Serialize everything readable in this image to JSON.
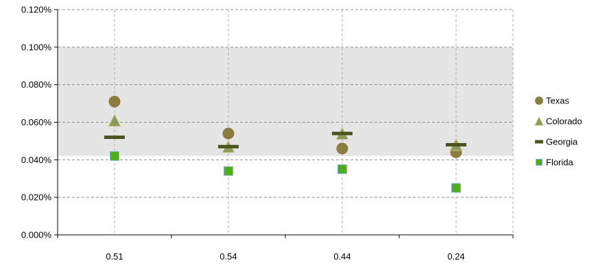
{
  "chart_data": {
    "type": "scatter",
    "categories": [
      "0.51",
      "0.54",
      "0.44",
      "0.24"
    ],
    "ylim": [
      0,
      0.12
    ],
    "yticks": [
      "0.000%",
      "0.020%",
      "0.040%",
      "0.060%",
      "0.080%",
      "0.100%",
      "0.120%"
    ],
    "shaded_band": [
      0.042,
      0.1
    ],
    "grid": true,
    "legend_position": "right",
    "series": [
      {
        "name": "Texas",
        "marker": "circle",
        "color": "#8b7d3f",
        "values": [
          0.071,
          0.054,
          0.046,
          0.044
        ]
      },
      {
        "name": "Colorado",
        "marker": "triangle",
        "color": "#8a9a5b",
        "values": [
          0.061,
          0.047,
          0.054,
          0.048
        ]
      },
      {
        "name": "Georgia",
        "marker": "dash",
        "color": "#4b5320",
        "values": [
          0.052,
          0.047,
          0.054,
          0.048
        ]
      },
      {
        "name": "Florida",
        "marker": "square",
        "color": "#4caf1a",
        "values": [
          0.042,
          0.034,
          0.035,
          0.025
        ]
      }
    ]
  }
}
